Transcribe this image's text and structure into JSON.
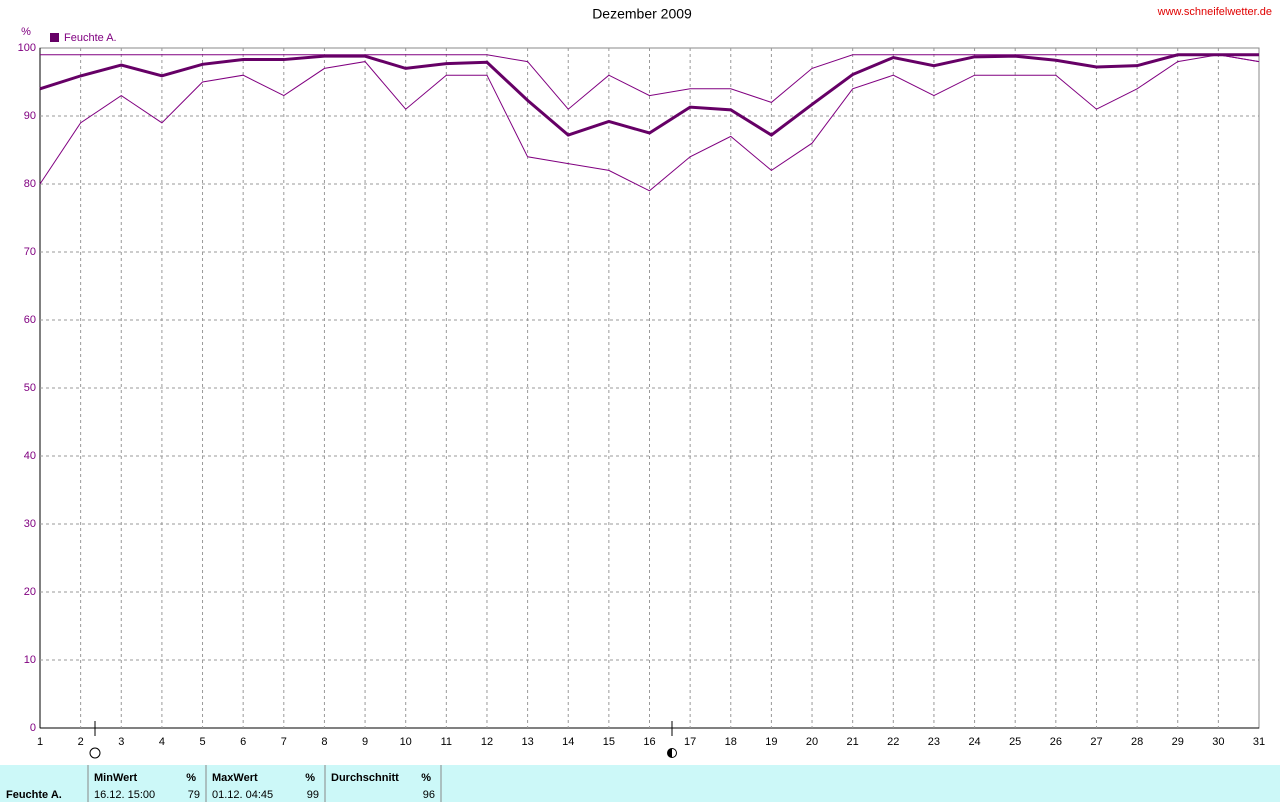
{
  "chart_data": {
    "type": "line",
    "title": "Dezember 2009",
    "source": "www.schneifelwetter.de",
    "y_unit": "%",
    "x": [
      1,
      2,
      3,
      4,
      5,
      6,
      7,
      8,
      9,
      10,
      11,
      12,
      13,
      14,
      15,
      16,
      17,
      18,
      19,
      20,
      21,
      22,
      23,
      24,
      25,
      26,
      27,
      28,
      29,
      30,
      31
    ],
    "xlim": [
      1,
      31
    ],
    "xticks": [
      1,
      2,
      3,
      4,
      5,
      6,
      7,
      8,
      9,
      10,
      11,
      12,
      13,
      14,
      15,
      16,
      17,
      18,
      19,
      20,
      21,
      22,
      23,
      24,
      25,
      26,
      27,
      28,
      29,
      30,
      31
    ],
    "ylim": [
      0,
      100
    ],
    "yticks": [
      0,
      10,
      20,
      30,
      40,
      50,
      60,
      70,
      80,
      90,
      100
    ],
    "grid": true,
    "series": [
      {
        "name": "Feuchte A.",
        "color": "#660066",
        "values": [
          94,
          95.9,
          97.5,
          95.9,
          97.6,
          98.3,
          98.3,
          98.8,
          98.8,
          97,
          97.7,
          97.9,
          92.3,
          87.2,
          89.2,
          87.5,
          91.3,
          90.9,
          87.2,
          91.7,
          96.1,
          98.6,
          97.4,
          98.7,
          98.8,
          98.2,
          97.2,
          97.4,
          99,
          99,
          99
        ]
      },
      {
        "color": "#800080",
        "values": [
          99,
          99,
          99,
          99,
          99,
          99,
          99,
          99,
          99,
          99,
          99,
          99,
          98,
          91,
          96,
          93,
          94,
          94,
          92,
          97,
          99,
          99,
          99,
          99,
          99,
          99,
          99,
          99,
          99,
          99,
          98
        ]
      },
      {
        "color": "#800080",
        "values": [
          80,
          89,
          93,
          89,
          95,
          96,
          93,
          97,
          98,
          91,
          96,
          96,
          84,
          83,
          82,
          79,
          84,
          87,
          82,
          86,
          94,
          96,
          93,
          96,
          96,
          96,
          91,
          94,
          98,
          99,
          98
        ]
      }
    ]
  },
  "summary_table": {
    "row_label": "Feuchte A.",
    "columns": [
      {
        "header": "MinWert",
        "unit": "%",
        "time": "16.12. 15:00",
        "value": "79"
      },
      {
        "header": "MaxWert",
        "unit": "%",
        "time": "01.12. 04:45",
        "value": "99"
      },
      {
        "header": "Durchschnitt",
        "unit": "%",
        "value": "96"
      }
    ]
  }
}
